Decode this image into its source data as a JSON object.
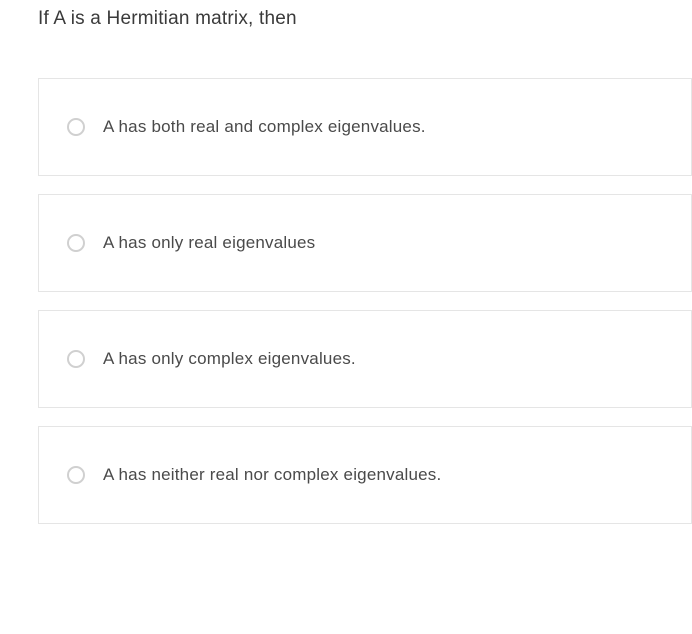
{
  "question": {
    "text": "If A is a Hermitian matrix, then",
    "text_color": "#3a3a3a",
    "fontsize": 19
  },
  "options": [
    {
      "label": "A has both real and complex eigenvalues.",
      "selected": false
    },
    {
      "label": "A has only real eigenvalues",
      "selected": false
    },
    {
      "label": "A has only complex eigenvalues.",
      "selected": false
    },
    {
      "label": "A has neither real nor complex eigenvalues.",
      "selected": false
    }
  ],
  "styles": {
    "option_border_color": "#e5e5e5",
    "radio_border_color": "#d0d0d0",
    "option_text_color": "#4a4a4a",
    "background_color": "#ffffff"
  }
}
